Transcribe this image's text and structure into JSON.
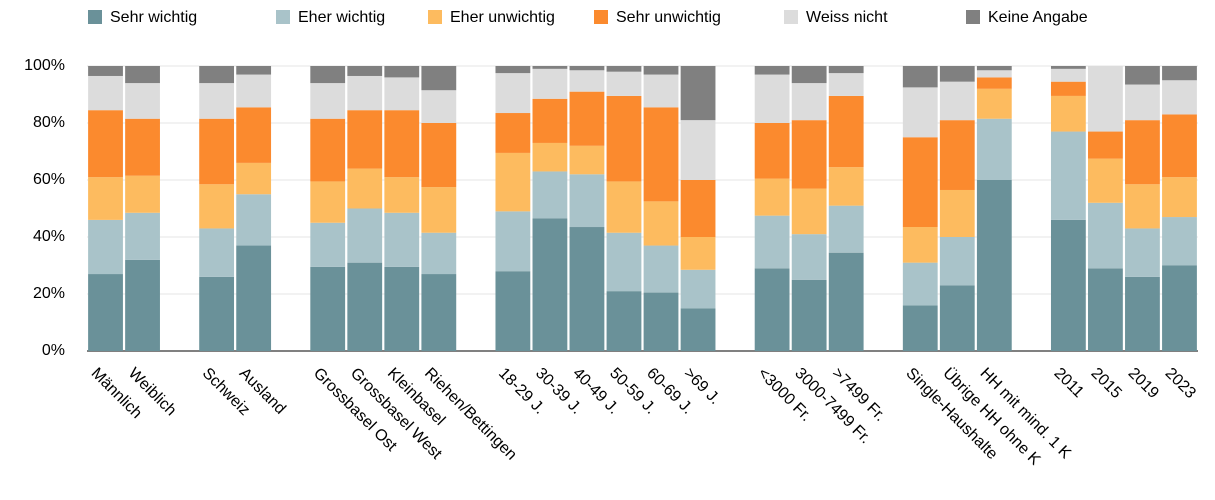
{
  "chart_data": {
    "type": "stacked-bar",
    "categories": [
      "Männlich",
      "Weiblich",
      null,
      "Schweiz",
      "Ausland",
      null,
      "Grossbasel Ost",
      "Grossbasel West",
      "Kleinbasel",
      "Riehen/Bettingen",
      null,
      "18-29 J.",
      "30-39 J.",
      "40-49 J.",
      "50-59 J.",
      "60-69 J.",
      ">69 J.",
      null,
      "<3000 Fr.",
      "3000-7499 Fr.",
      ">7499 Fr.",
      null,
      "Single-Haushalte",
      "Übrige HH ohne K",
      "HH mit mind. 1 K",
      null,
      "2011",
      "2015",
      "2019",
      "2023"
    ],
    "series": [
      {
        "name": "Sehr wichtig",
        "color": "#6a9199",
        "values": [
          27,
          32,
          null,
          26,
          37,
          null,
          29.5,
          31,
          29.5,
          27,
          null,
          28,
          46.5,
          43.5,
          21,
          20.5,
          15,
          null,
          29,
          25,
          34.5,
          null,
          16,
          23,
          60,
          null,
          46,
          29,
          26,
          30
        ]
      },
      {
        "name": "Eher wichtig",
        "color": "#a9c3c9",
        "values": [
          19,
          16.5,
          null,
          17,
          18,
          null,
          15.5,
          19,
          19,
          14.5,
          null,
          21,
          16.5,
          18.5,
          20.5,
          16.5,
          13.5,
          null,
          18.5,
          16,
          16.5,
          null,
          15,
          17,
          21.5,
          null,
          31,
          23,
          17,
          17
        ]
      },
      {
        "name": "Eher unwichtig",
        "color": "#fdbb5f",
        "values": [
          15,
          13,
          null,
          15.5,
          11,
          null,
          14.5,
          14,
          12.5,
          16,
          null,
          20.5,
          10,
          10,
          18,
          15.5,
          11.5,
          null,
          13,
          16,
          13.5,
          null,
          12.5,
          16.5,
          10.5,
          null,
          12.5,
          15.5,
          15.5,
          14
        ]
      },
      {
        "name": "Sehr unwichtig",
        "color": "#fb8a2e",
        "values": [
          23.5,
          20,
          null,
          23,
          19.5,
          null,
          22,
          20.5,
          23.5,
          22.5,
          null,
          14,
          15.5,
          19,
          30,
          33,
          20,
          null,
          19.5,
          24,
          25,
          null,
          31.5,
          24.5,
          4,
          null,
          5,
          9.5,
          22.5,
          22
        ]
      },
      {
        "name": "Weiss nicht",
        "color": "#dcdcdc",
        "values": [
          12,
          12.5,
          null,
          12.5,
          11.5,
          null,
          12.5,
          12,
          11.5,
          11.5,
          null,
          14,
          10.5,
          7.5,
          8.5,
          11.5,
          21,
          null,
          17,
          13,
          8,
          null,
          17.5,
          13.5,
          2.5,
          null,
          4.5,
          23,
          12.5,
          12
        ]
      },
      {
        "name": "Keine Angabe",
        "color": "#808080",
        "values": [
          3.5,
          6,
          null,
          6,
          3,
          null,
          6,
          3.5,
          4,
          8.5,
          null,
          2.5,
          1,
          1.5,
          2,
          3,
          19,
          null,
          3,
          6,
          2.5,
          null,
          7.5,
          5.5,
          1.5,
          null,
          1,
          0,
          6.5,
          5
        ]
      }
    ],
    "ylim": [
      0,
      100
    ],
    "yticks": [
      {
        "value": 0,
        "label": "0%"
      },
      {
        "value": 20,
        "label": "20%"
      },
      {
        "value": 40,
        "label": "40%"
      },
      {
        "value": 60,
        "label": "60%"
      },
      {
        "value": 80,
        "label": "80%"
      },
      {
        "value": 100,
        "label": "100%"
      }
    ],
    "grid": true,
    "legend": "top"
  }
}
